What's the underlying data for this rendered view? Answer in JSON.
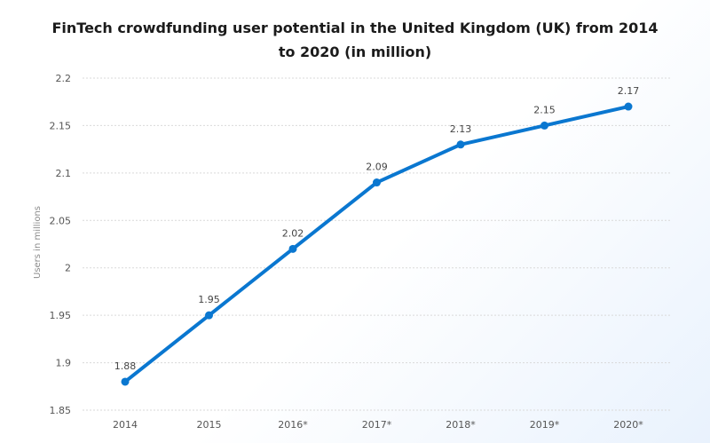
{
  "chart_data": {
    "type": "line",
    "title_lines": [
      "FinTech crowdfunding user potential in the United Kingdom (UK) from 2014",
      "to 2020 (in million)"
    ],
    "categories": [
      "2014",
      "2015",
      "2016*",
      "2017*",
      "2018*",
      "2019*",
      "2020*"
    ],
    "series": [
      {
        "name": "Users in millions",
        "values": [
          1.88,
          1.95,
          2.02,
          2.09,
          2.13,
          2.15,
          2.17
        ],
        "labels": [
          "1.88",
          "1.95",
          "2.02",
          "2.09",
          "2.13",
          "2.15",
          "2.17"
        ]
      }
    ],
    "xlabel": "",
    "ylabel": "Users in millions",
    "ylim": [
      1.85,
      2.2
    ],
    "yticks": [
      1.85,
      1.9,
      1.95,
      2,
      2.05,
      2.1,
      2.15,
      2.2
    ],
    "ytick_labels": [
      "1.85",
      "1.9",
      "1.95",
      "2",
      "2.05",
      "2.1",
      "2.15",
      "2.2"
    ],
    "grid": true,
    "legend": "none",
    "colors": {
      "line": "#0a77d0",
      "grid": "#d9d9d9"
    }
  }
}
